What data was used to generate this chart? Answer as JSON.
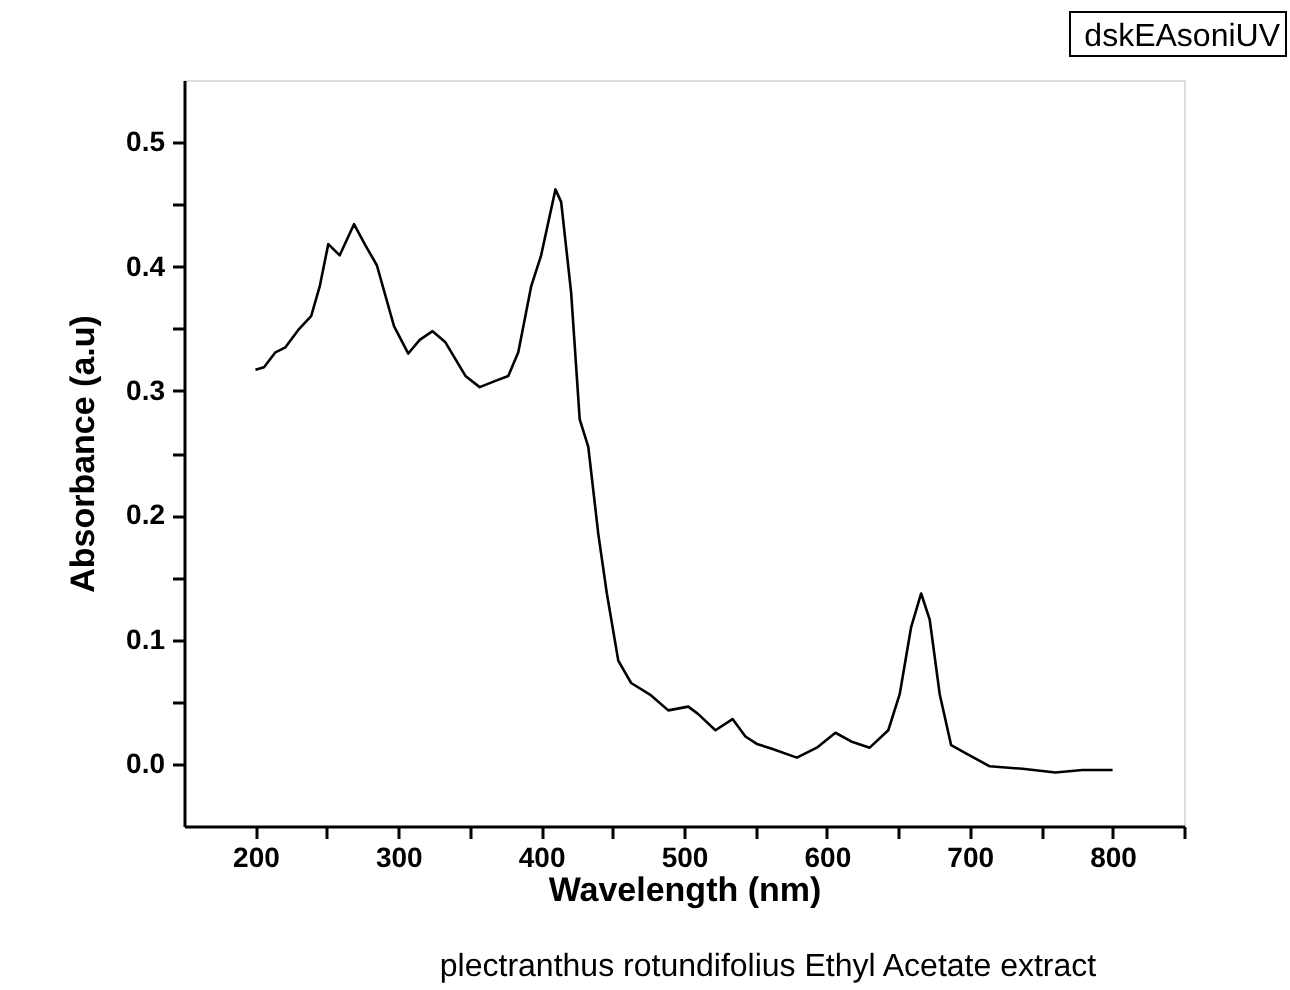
{
  "chart_data": {
    "type": "line",
    "xlabel": "Wavelength (nm)",
    "ylabel": "Absorbance (a.u)",
    "annotations": [
      "dskEAsoniUV",
      "plectranthus rotundifolius Ethyl Acetate extract"
    ],
    "xlim": [
      150,
      850
    ],
    "ylim": [
      -0.05,
      0.55
    ],
    "xticks": [
      200,
      {
        "value": 250,
        "label": null
      },
      300,
      {
        "value": 350,
        "label": null
      },
      400,
      {
        "value": 450,
        "label": null
      },
      500,
      {
        "value": 550,
        "label": null
      },
      600,
      {
        "value": 650,
        "label": null
      },
      700,
      {
        "value": 750,
        "label": null
      },
      800,
      {
        "value": 850,
        "label": null
      }
    ],
    "yticks": [
      {
        "value": 0,
        "label": "0.0"
      },
      {
        "value": 0.05,
        "label": null
      },
      {
        "value": 0.1,
        "label": "0.1"
      },
      {
        "value": 0.15,
        "label": null
      },
      {
        "value": 0.2,
        "label": "0.2"
      },
      {
        "value": 0.25,
        "label": null
      },
      {
        "value": 0.3,
        "label": "0.3"
      },
      {
        "value": 0.35,
        "label": null
      },
      {
        "value": 0.4,
        "label": "0.4"
      },
      {
        "value": 0.45,
        "label": null
      },
      {
        "value": 0.5,
        "label": "0.5"
      }
    ],
    "grid": false,
    "line_style": "solid",
    "series": [
      {
        "color": "#000000",
        "x": [
          200,
          206,
          214,
          221,
          230,
          239,
          245,
          251,
          259,
          269,
          277,
          285,
          297,
          307,
          315,
          324,
          333,
          347,
          357,
          368,
          377,
          384,
          393,
          400,
          410,
          414,
          421,
          427,
          433,
          440,
          446,
          454,
          463,
          477,
          489,
          503,
          510,
          522,
          534,
          543,
          551,
          562,
          579,
          593,
          606,
          617,
          630,
          643,
          651,
          659,
          666,
          672,
          679,
          687,
          698,
          714,
          737,
          760,
          779,
          800
        ],
        "values": [
          0.317,
          0.319,
          0.331,
          0.335,
          0.349,
          0.36,
          0.384,
          0.418,
          0.409,
          0.434,
          0.417,
          0.401,
          0.352,
          0.33,
          0.341,
          0.348,
          0.339,
          0.312,
          0.303,
          0.308,
          0.312,
          0.331,
          0.384,
          0.409,
          0.462,
          0.452,
          0.379,
          0.277,
          0.255,
          0.185,
          0.137,
          0.083,
          0.065,
          0.055,
          0.043,
          0.046,
          0.04,
          0.027,
          0.036,
          0.022,
          0.016,
          0.012,
          0.005,
          0.013,
          0.025,
          0.018,
          0.013,
          0.027,
          0.056,
          0.11,
          0.137,
          0.116,
          0.056,
          0.015,
          0.008,
          -0.002,
          -0.004,
          -0.007,
          -0.005,
          -0.005
        ]
      }
    ]
  }
}
